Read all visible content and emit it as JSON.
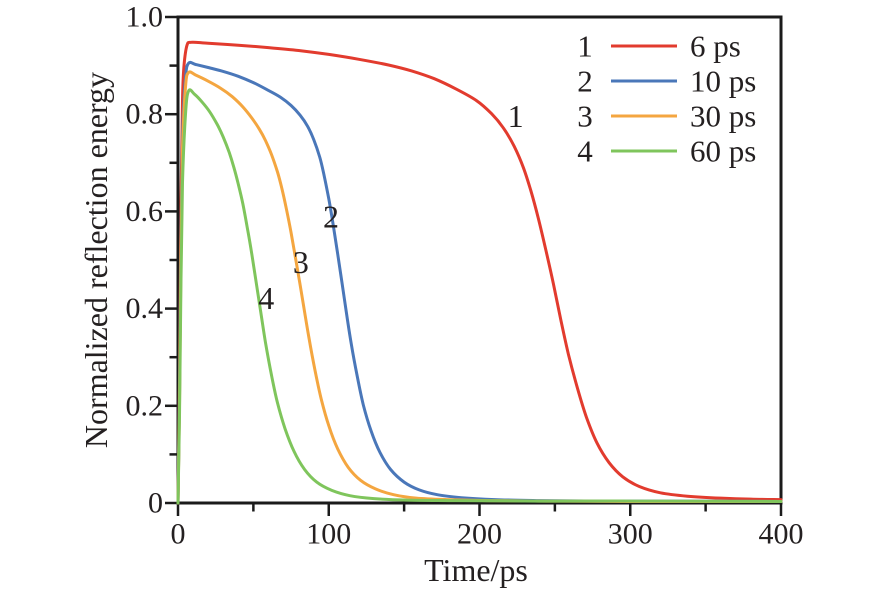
{
  "figure": {
    "background": "#ffffff",
    "text_color": "#242021",
    "axis_color": "#1b1b1b"
  },
  "chart_data": {
    "type": "line",
    "title": "",
    "xlabel": "Time/ps",
    "ylabel": "Normalized reflection energy",
    "xlim": [
      0,
      400
    ],
    "ylim": [
      0,
      1.0
    ],
    "grid": false,
    "legend_position": "top-right-inside",
    "x_major_ticks": [
      0,
      100,
      200,
      300,
      400
    ],
    "x_major_tick_labels": [
      "0",
      "100",
      "200",
      "300",
      "400"
    ],
    "x_minor_ticks": [
      50,
      150,
      250,
      350
    ],
    "y_major_ticks": [
      0,
      0.2,
      0.4,
      0.6,
      0.8,
      1.0
    ],
    "y_major_tick_labels": [
      "0",
      "0.2",
      "0.4",
      "0.6",
      "0.8",
      "1.0"
    ],
    "y_minor_ticks": [
      0.1,
      0.3,
      0.5,
      0.7,
      0.9
    ],
    "series": [
      {
        "index": "1",
        "name": "6 ps",
        "color": "#e23b2e",
        "points": [
          [
            0,
            0
          ],
          [
            1,
            0.25
          ],
          [
            2,
            0.62
          ],
          [
            3,
            0.83
          ],
          [
            4,
            0.9
          ],
          [
            6,
            0.942
          ],
          [
            9,
            0.948
          ],
          [
            20,
            0.946
          ],
          [
            40,
            0.942
          ],
          [
            60,
            0.937
          ],
          [
            80,
            0.931
          ],
          [
            100,
            0.923
          ],
          [
            120,
            0.913
          ],
          [
            140,
            0.901
          ],
          [
            155,
            0.889
          ],
          [
            170,
            0.873
          ],
          [
            185,
            0.851
          ],
          [
            198,
            0.828
          ],
          [
            208,
            0.801
          ],
          [
            216,
            0.771
          ],
          [
            223,
            0.734
          ],
          [
            229,
            0.691
          ],
          [
            234,
            0.643
          ],
          [
            239,
            0.586
          ],
          [
            244,
            0.521
          ],
          [
            249,
            0.451
          ],
          [
            254,
            0.376
          ],
          [
            259,
            0.306
          ],
          [
            265,
            0.236
          ],
          [
            271,
            0.176
          ],
          [
            278,
            0.123
          ],
          [
            286,
            0.083
          ],
          [
            295,
            0.054
          ],
          [
            306,
            0.034
          ],
          [
            320,
            0.021
          ],
          [
            338,
            0.014
          ],
          [
            360,
            0.01
          ],
          [
            380,
            0.008
          ],
          [
            400,
            0.007
          ]
        ]
      },
      {
        "index": "2",
        "name": "10 ps",
        "color": "#4a77b9",
        "points": [
          [
            0,
            0
          ],
          [
            1,
            0.22
          ],
          [
            2,
            0.55
          ],
          [
            3,
            0.76
          ],
          [
            5,
            0.875
          ],
          [
            7,
            0.905
          ],
          [
            12,
            0.902
          ],
          [
            20,
            0.896
          ],
          [
            30,
            0.888
          ],
          [
            40,
            0.878
          ],
          [
            50,
            0.865
          ],
          [
            60,
            0.849
          ],
          [
            68,
            0.835
          ],
          [
            75,
            0.818
          ],
          [
            81,
            0.798
          ],
          [
            86,
            0.775
          ],
          [
            90,
            0.748
          ],
          [
            94,
            0.712
          ],
          [
            97,
            0.673
          ],
          [
            100,
            0.626
          ],
          [
            103,
            0.571
          ],
          [
            106,
            0.511
          ],
          [
            109,
            0.449
          ],
          [
            112,
            0.386
          ],
          [
            115,
            0.326
          ],
          [
            119,
            0.259
          ],
          [
            123,
            0.201
          ],
          [
            128,
            0.149
          ],
          [
            134,
            0.104
          ],
          [
            141,
            0.069
          ],
          [
            150,
            0.043
          ],
          [
            160,
            0.027
          ],
          [
            172,
            0.017
          ],
          [
            188,
            0.011
          ],
          [
            210,
            0.007
          ],
          [
            240,
            0.005
          ],
          [
            280,
            0.004
          ],
          [
            330,
            0.004
          ],
          [
            400,
            0.003
          ]
        ]
      },
      {
        "index": "3",
        "name": "30 ps",
        "color": "#f4a640",
        "points": [
          [
            0,
            0
          ],
          [
            1,
            0.2
          ],
          [
            2,
            0.52
          ],
          [
            3,
            0.73
          ],
          [
            5,
            0.856
          ],
          [
            7,
            0.886
          ],
          [
            12,
            0.88
          ],
          [
            20,
            0.868
          ],
          [
            28,
            0.854
          ],
          [
            36,
            0.836
          ],
          [
            43,
            0.815
          ],
          [
            49,
            0.792
          ],
          [
            54,
            0.769
          ],
          [
            58,
            0.746
          ],
          [
            62,
            0.717
          ],
          [
            66,
            0.681
          ],
          [
            69,
            0.646
          ],
          [
            72,
            0.604
          ],
          [
            75,
            0.556
          ],
          [
            78,
            0.503
          ],
          [
            81,
            0.449
          ],
          [
            84,
            0.393
          ],
          [
            87,
            0.337
          ],
          [
            91,
            0.271
          ],
          [
            95,
            0.214
          ],
          [
            100,
            0.159
          ],
          [
            106,
            0.111
          ],
          [
            113,
            0.073
          ],
          [
            121,
            0.047
          ],
          [
            131,
            0.029
          ],
          [
            143,
            0.017
          ],
          [
            158,
            0.01
          ],
          [
            178,
            0.007
          ],
          [
            205,
            0.005
          ],
          [
            245,
            0.004
          ],
          [
            300,
            0.003
          ],
          [
            400,
            0.003
          ]
        ]
      },
      {
        "index": "4",
        "name": "60 ps",
        "color": "#7fc55c",
        "points": [
          [
            0,
            0
          ],
          [
            1,
            0.18
          ],
          [
            2,
            0.46
          ],
          [
            3,
            0.66
          ],
          [
            5,
            0.8
          ],
          [
            7,
            0.848
          ],
          [
            11,
            0.841
          ],
          [
            16,
            0.825
          ],
          [
            21,
            0.805
          ],
          [
            26,
            0.779
          ],
          [
            30,
            0.753
          ],
          [
            34,
            0.721
          ],
          [
            37,
            0.691
          ],
          [
            40,
            0.656
          ],
          [
            43,
            0.616
          ],
          [
            46,
            0.566
          ],
          [
            49,
            0.511
          ],
          [
            52,
            0.451
          ],
          [
            55,
            0.391
          ],
          [
            58,
            0.331
          ],
          [
            62,
            0.263
          ],
          [
            66,
            0.206
          ],
          [
            71,
            0.153
          ],
          [
            77,
            0.106
          ],
          [
            84,
            0.069
          ],
          [
            92,
            0.043
          ],
          [
            102,
            0.026
          ],
          [
            114,
            0.015
          ],
          [
            130,
            0.009
          ],
          [
            152,
            0.006
          ],
          [
            185,
            0.005
          ],
          [
            240,
            0.004
          ],
          [
            320,
            0.004
          ],
          [
            400,
            0.003
          ]
        ]
      }
    ],
    "curve_labels": [
      {
        "text": "1",
        "x": 224,
        "y": 0.796
      },
      {
        "text": "2",
        "x": 101.5,
        "y": 0.59
      },
      {
        "text": "3",
        "x": 81.5,
        "y": 0.496
      },
      {
        "text": "4",
        "x": 58.5,
        "y": 0.422
      }
    ]
  }
}
